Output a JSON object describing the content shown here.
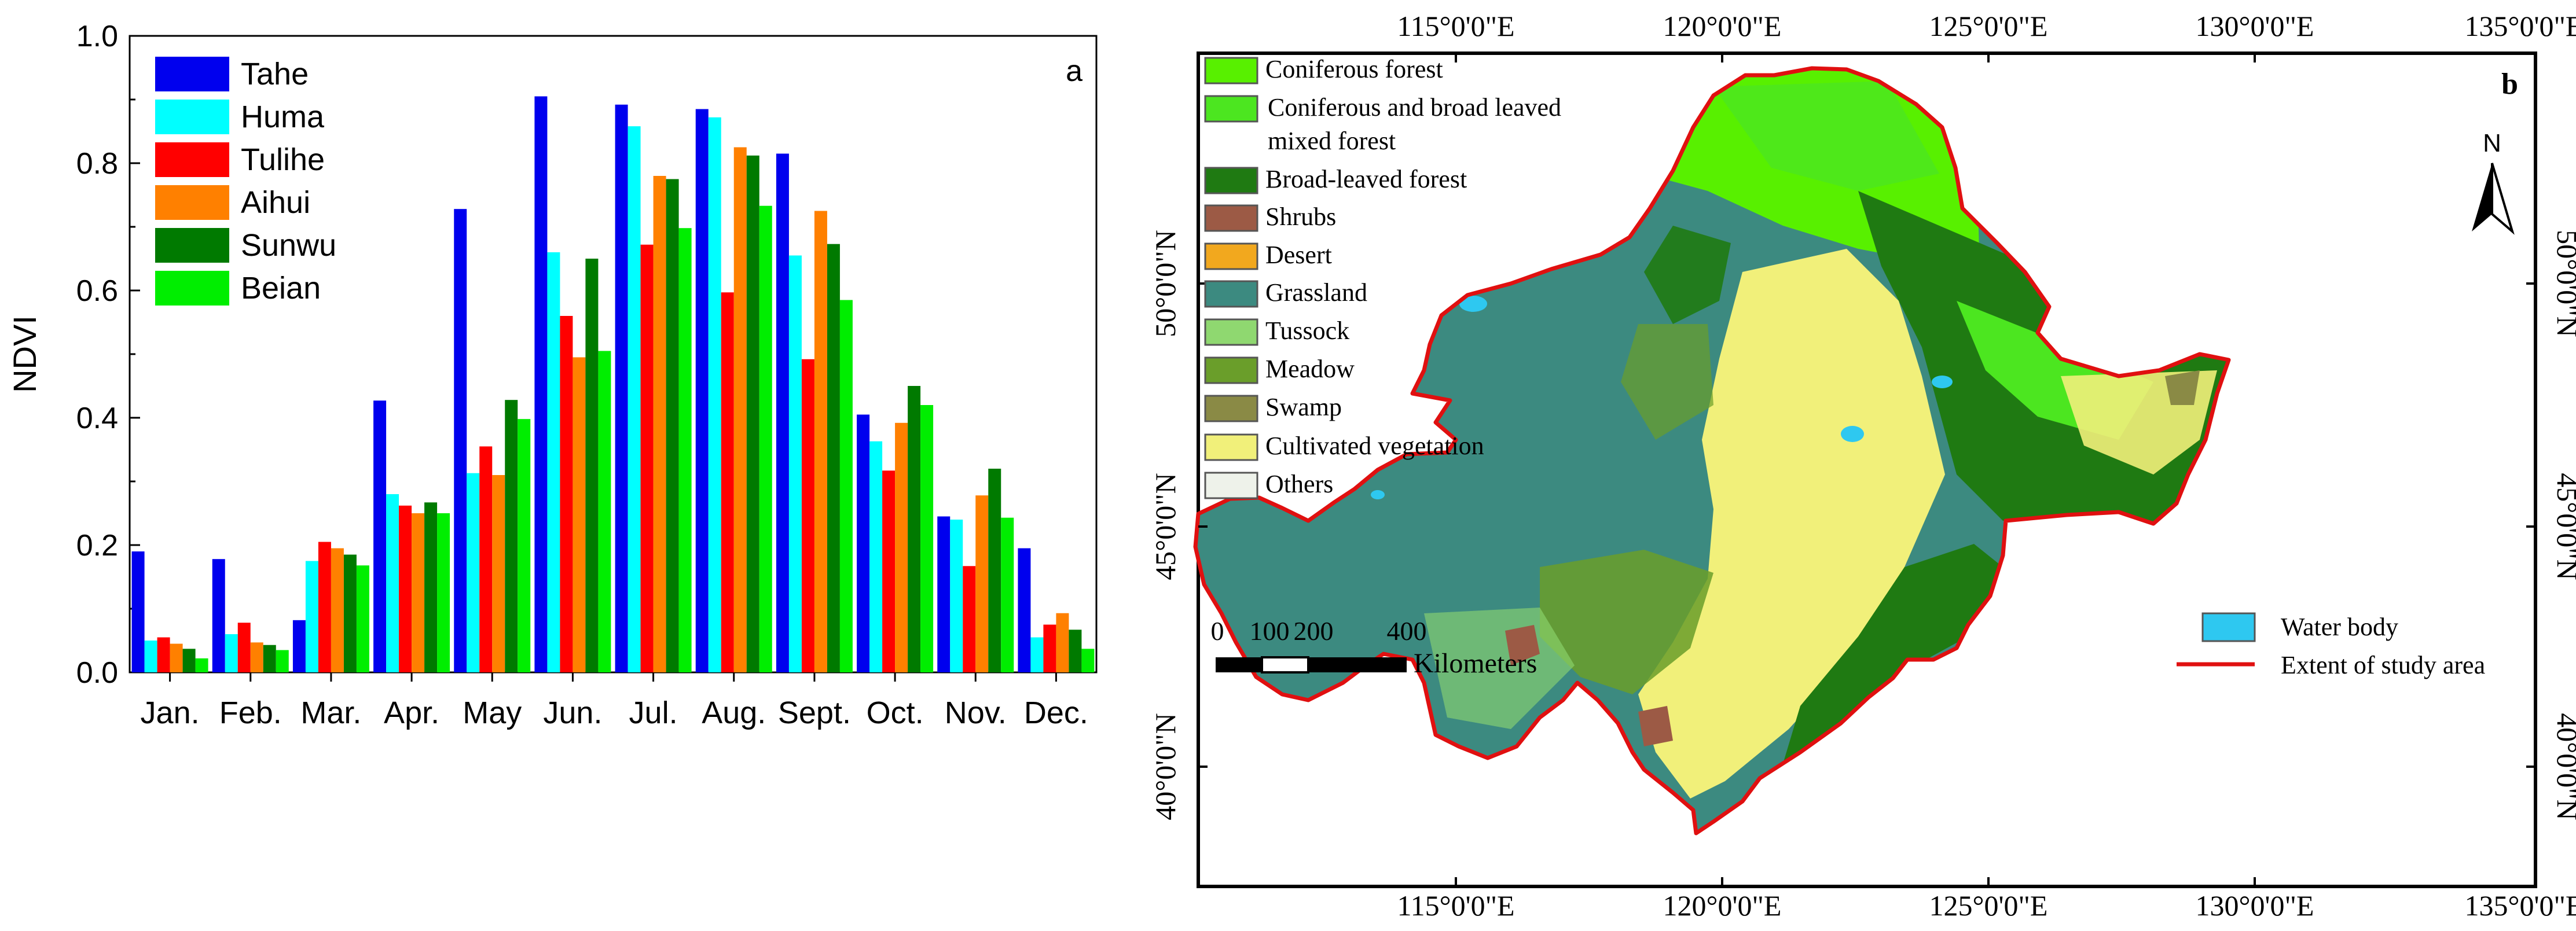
{
  "chart_data": [
    {
      "type": "bar",
      "panel_label": "a",
      "title": "",
      "xlabel": "",
      "ylabel": "NDVI",
      "ylim": [
        0,
        1.0
      ],
      "yticks": [
        "0.0",
        "0.2",
        "0.4",
        "0.6",
        "0.8",
        "1.0"
      ],
      "grid": false,
      "legend_position": "top-left",
      "categories": [
        "Jan.",
        "Feb.",
        "Mar.",
        "Apr.",
        "May",
        "Jun.",
        "Jul.",
        "Aug.",
        "Sept.",
        "Oct.",
        "Nov.",
        "Dec."
      ],
      "series": [
        {
          "name": "Tahe",
          "color": "#0000ee",
          "values": [
            0.19,
            0.178,
            0.082,
            0.427,
            0.728,
            0.905,
            0.892,
            0.885,
            0.815,
            0.405,
            0.245,
            0.195
          ]
        },
        {
          "name": "Huma",
          "color": "#00ffff",
          "values": [
            0.05,
            0.06,
            0.175,
            0.28,
            0.313,
            0.66,
            0.858,
            0.872,
            0.655,
            0.363,
            0.24,
            0.055
          ]
        },
        {
          "name": "Tulihe",
          "color": "#ff0000",
          "values": [
            0.055,
            0.078,
            0.205,
            0.262,
            0.355,
            0.56,
            0.672,
            0.597,
            0.492,
            0.317,
            0.167,
            0.075
          ]
        },
        {
          "name": "Aihui",
          "color": "#ff8000",
          "values": [
            0.045,
            0.047,
            0.195,
            0.25,
            0.31,
            0.495,
            0.78,
            0.825,
            0.725,
            0.392,
            0.278,
            0.093
          ]
        },
        {
          "name": "Sunwu",
          "color": "#007a00",
          "values": [
            0.037,
            0.043,
            0.185,
            0.267,
            0.428,
            0.65,
            0.775,
            0.812,
            0.673,
            0.45,
            0.32,
            0.067
          ]
        },
        {
          "name": "Beian",
          "color": "#00ee00",
          "values": [
            0.022,
            0.035,
            0.168,
            0.25,
            0.398,
            0.505,
            0.698,
            0.733,
            0.585,
            0.42,
            0.243,
            0.037
          ]
        }
      ]
    }
  ],
  "map": {
    "panel_label": "b",
    "longitude_labels": [
      "115°0'0\"E",
      "120°0'0\"E",
      "125°0'0\"E",
      "130°0'0\"E",
      "135°0'0\"E"
    ],
    "latitude_labels": [
      "50°0'0\"N",
      "45°0'0\"N",
      "40°0'0\"N"
    ],
    "north_label": "N",
    "legend": [
      {
        "label": "Coniferous forest",
        "color": "#58f000"
      },
      {
        "label": "Coniferous and broad leaved",
        "color": "#4ce620"
      },
      {
        "label": "mixed forest",
        "color": ""
      },
      {
        "label": "Broad-leaved forest",
        "color": "#1f7a12"
      },
      {
        "label": "Shrubs",
        "color": "#9c5a45"
      },
      {
        "label": "Desert",
        "color": "#f2a81e"
      },
      {
        "label": "Grassland",
        "color": "#3c8a80"
      },
      {
        "label": "Tussock",
        "color": "#8fd870"
      },
      {
        "label": "Meadow",
        "color": "#6a9e2a"
      },
      {
        "label": "Swamp",
        "color": "#8a8a45"
      },
      {
        "label": "Cultivated vegetation",
        "color": "#f1f07a"
      },
      {
        "label": "Others",
        "color": "#eef2ea"
      }
    ],
    "scale_bar": {
      "ticks": [
        "0",
        "100",
        "200",
        "400"
      ],
      "unit": "Kilometers"
    },
    "legend2": [
      {
        "label": "Water body",
        "color": "#2ec8f0"
      },
      {
        "label": "Extent of study area",
        "color": "#e01010"
      }
    ]
  }
}
